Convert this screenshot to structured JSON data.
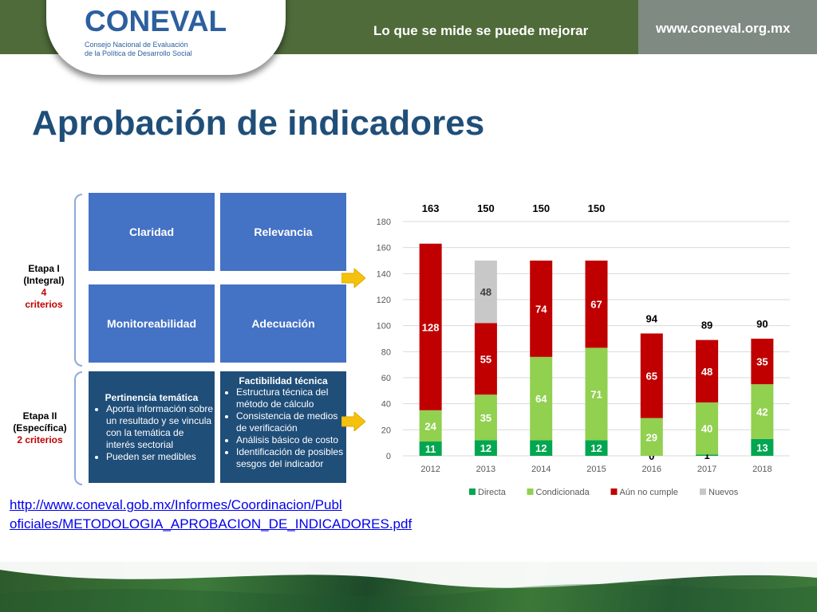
{
  "header": {
    "logo_text": "CONEVAL",
    "logo_sub_1": "Consejo Nacional de Evaluación",
    "logo_sub_2": "de la Política de Desarrollo Social",
    "slogan": "Lo que se mide se puede mejorar",
    "website": "www.coneval.org.mx"
  },
  "title": "Aprobación de indicadores",
  "criteria": {
    "etapa1_line1": "Etapa I",
    "etapa1_line2": "(Integral)",
    "etapa1_count": "4",
    "etapa1_label": "criterios",
    "etapa2_line1": "Etapa II",
    "etapa2_line2": "(Específica)",
    "etapa2_count": "2 criterios",
    "boxes": [
      "Claridad",
      "Relevancia",
      "Monitoreabilidad",
      "Adecuación"
    ],
    "pertinencia": {
      "title": "Pertinencia temática",
      "items": [
        "Aporta información sobre un resultado y se vincula con la temática de interés sectorial",
        "Pueden ser medibles"
      ]
    },
    "factibilidad": {
      "title": "Factibilidad técnica",
      "items": [
        "Estructura técnica del método de cálculo",
        "Consistencia de medios de verificación",
        "Análisis básico de costo",
        "Identificación de posibles sesgos del indicador"
      ]
    }
  },
  "link": {
    "line1": "http://www.coneval.gob.mx/Informes/Coordinacion/Publ",
    "line2": "oficiales/METODOLOGIA_APROBACION_DE_INDICADORES.pdf"
  },
  "colors": {
    "directa": "#00a650",
    "condicionada": "#92d050",
    "aun_no_cumple": "#c00000",
    "nuevos": "#c8c8c8"
  },
  "chart_data": {
    "type": "bar",
    "stacked": true,
    "categories": [
      "2012",
      "2013",
      "2014",
      "2015",
      "2016",
      "2017",
      "2018"
    ],
    "series": [
      {
        "name": "Directa",
        "values": [
          11,
          12,
          12,
          12,
          0,
          1,
          13
        ]
      },
      {
        "name": "Condicionada",
        "values": [
          24,
          35,
          64,
          71,
          29,
          40,
          42
        ]
      },
      {
        "name": "Aún no cumple",
        "values": [
          128,
          55,
          74,
          67,
          65,
          48,
          35
        ]
      },
      {
        "name": "Nuevos",
        "values": [
          0,
          48,
          0,
          0,
          0,
          0,
          0
        ]
      }
    ],
    "totals": [
      163,
      150,
      150,
      150,
      94,
      89,
      90
    ],
    "ylim": [
      0,
      180
    ],
    "yticks": [
      0,
      20,
      40,
      60,
      80,
      100,
      120,
      140,
      160,
      180
    ],
    "grid": true,
    "legend_position": "bottom"
  }
}
